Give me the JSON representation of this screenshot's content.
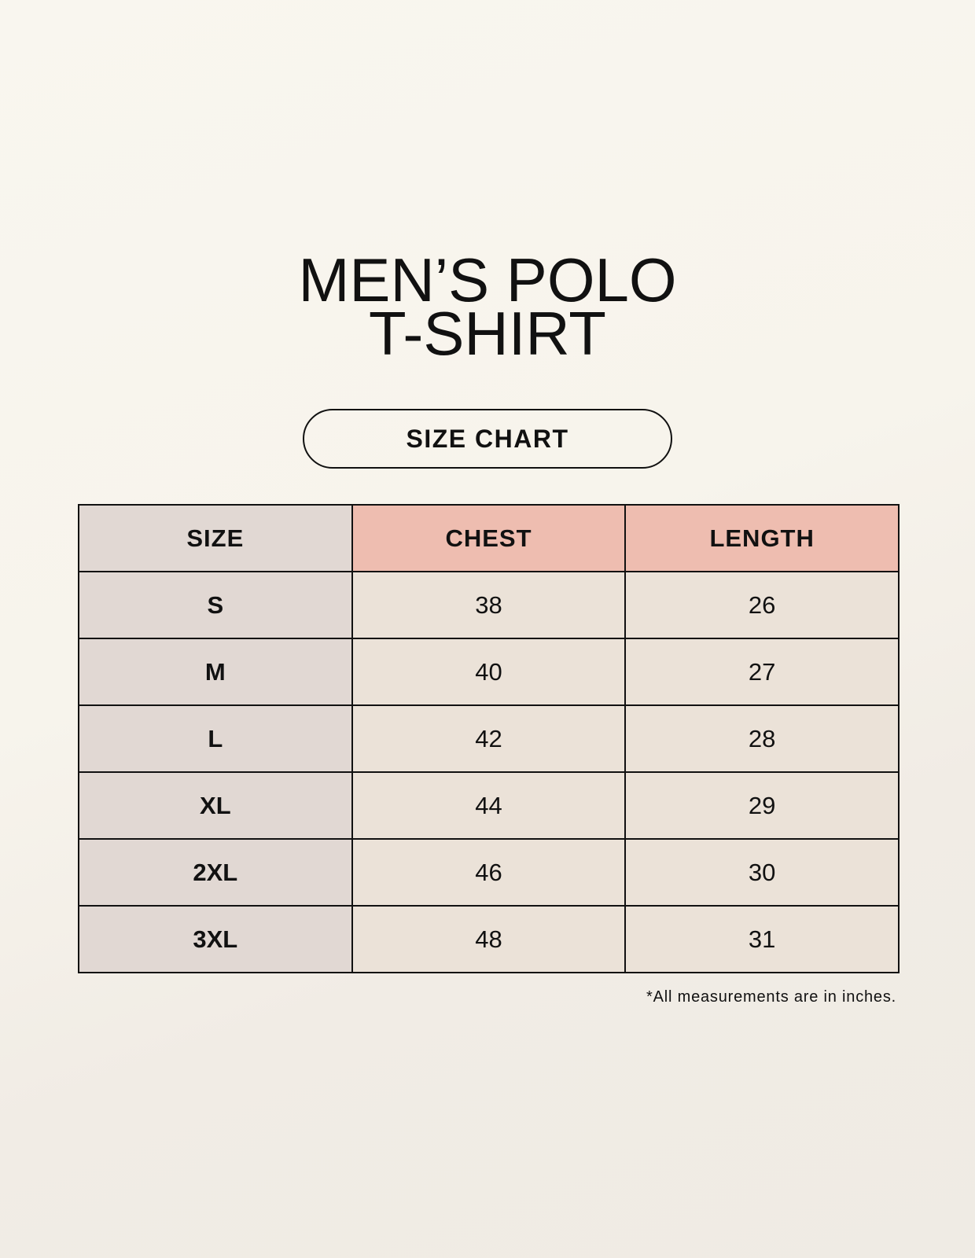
{
  "title": {
    "line1": "MEN’S POLO",
    "line2": "T-SHIRT"
  },
  "subtitle": "SIZE CHART",
  "table": {
    "headers": [
      "SIZE",
      "CHEST",
      "LENGTH"
    ],
    "rows": [
      [
        "S",
        "38",
        "26"
      ],
      [
        "M",
        "40",
        "27"
      ],
      [
        "L",
        "42",
        "28"
      ],
      [
        "XL",
        "44",
        "29"
      ],
      [
        "2XL",
        "46",
        "30"
      ],
      [
        "3XL",
        "48",
        "31"
      ]
    ]
  },
  "footnote": "*All measurements are in inches.",
  "colors": {
    "size_column": "#e1d8d3",
    "header_accent": "#eebdb0",
    "cell": "#ebe2d8"
  }
}
